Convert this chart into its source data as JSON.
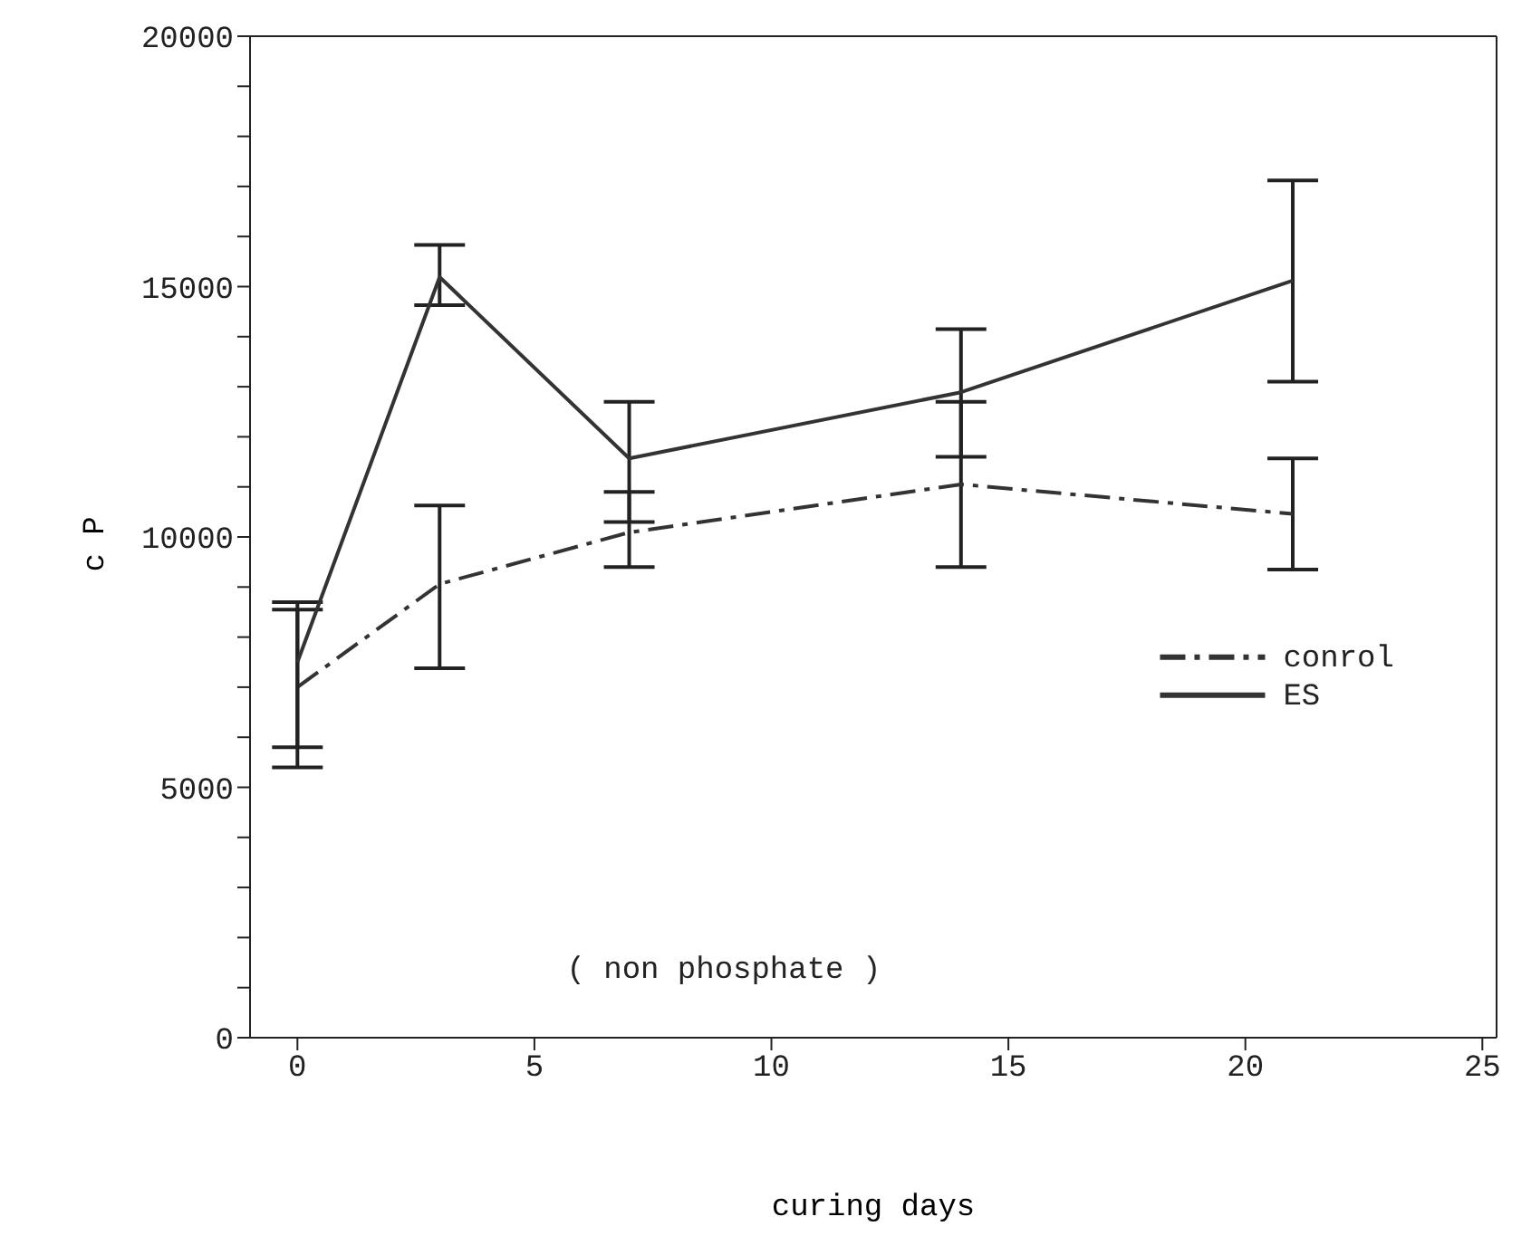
{
  "chart_data": {
    "type": "line",
    "xlabel": "curing days",
    "ylabel": "c P",
    "annotations": [
      "( non phosphate )"
    ],
    "x": [
      0,
      3,
      7,
      14,
      21
    ],
    "series": [
      {
        "name": "conrol",
        "color": "#333333",
        "line_style": "dashed",
        "values": [
          7000,
          9060,
          10090,
          11050,
          10460
        ],
        "errors": [
          [
            5400,
            8550
          ],
          [
            7380,
            10630
          ],
          [
            9400,
            10900
          ],
          [
            9400,
            12700
          ],
          [
            9350,
            11570
          ]
        ]
      },
      {
        "name": "ES",
        "color": "#333333",
        "line_style": "solid",
        "values": [
          7500,
          15190,
          11570,
          12890,
          15120
        ],
        "errors": [
          [
            5800,
            8700
          ],
          [
            14630,
            15830
          ],
          [
            10300,
            12700
          ],
          [
            11600,
            14150
          ],
          [
            13100,
            17120
          ]
        ]
      }
    ],
    "xlim": [
      -1,
      25.3
    ],
    "xticks": [
      0,
      5,
      10,
      15,
      20,
      25
    ],
    "ylim": [
      0,
      20000
    ],
    "yticks": [
      0,
      {
        "value": 1000,
        "label": null
      },
      {
        "value": 2000,
        "label": null
      },
      {
        "value": 3000,
        "label": null
      },
      {
        "value": 4000,
        "label": null
      },
      5000,
      {
        "value": 6000,
        "label": null
      },
      {
        "value": 7000,
        "label": null
      },
      {
        "value": 8000,
        "label": null
      },
      {
        "value": 9000,
        "label": null
      },
      10000,
      {
        "value": 11000,
        "label": null
      },
      {
        "value": 12000,
        "label": null
      },
      {
        "value": 13000,
        "label": null
      },
      {
        "value": 14000,
        "label": null
      },
      15000,
      {
        "value": 16000,
        "label": null
      },
      {
        "value": 17000,
        "label": null
      },
      {
        "value": 18000,
        "label": null
      },
      {
        "value": 19000,
        "label": null
      },
      20000
    ],
    "legend": "right",
    "marker": "none"
  }
}
